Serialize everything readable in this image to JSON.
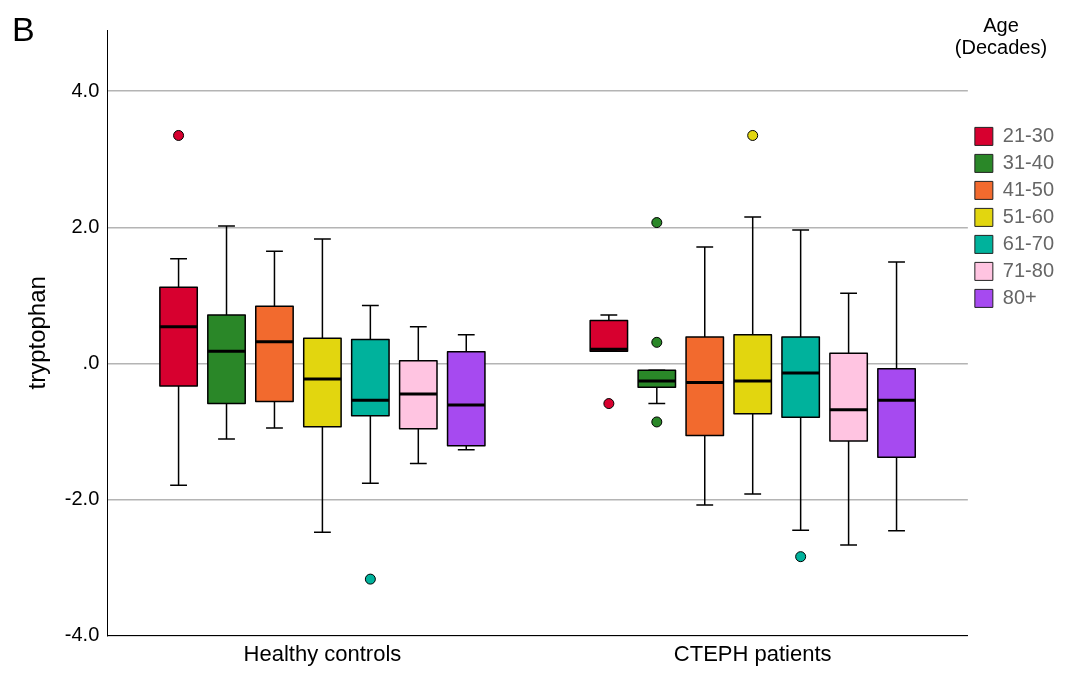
{
  "chart_data": {
    "type": "box",
    "ylabel": "tryptophan",
    "legend_title": "Age (Decades)",
    "annotations": [
      "B"
    ],
    "categories": [
      "Healthy controls",
      "CTEPH patients"
    ],
    "ylim": [
      -4.0,
      4.9
    ],
    "yticks": [
      {
        "value": -4,
        "label": "-4.0"
      },
      {
        "value": -2,
        "label": "-2.0"
      },
      {
        "value": 0,
        "label": ".0"
      },
      {
        "value": 2,
        "label": "2.0"
      },
      {
        "value": 4,
        "label": "4.0"
      }
    ],
    "grid": "y",
    "legend": "top right",
    "series": [
      {
        "name": "21-30",
        "color": "#d7002f",
        "boxes": [
          {
            "low": -1.79,
            "q1": -0.33,
            "median": 0.54,
            "q3": 1.12,
            "high": 1.54,
            "outliers": [
              3.35
            ]
          },
          {
            "low": 0.18,
            "q1": 0.18,
            "median": 0.21,
            "q3": 0.63,
            "high": 0.71,
            "outliers": [
              -0.59
            ]
          }
        ]
      },
      {
        "name": "31-40",
        "color": "#2a8728",
        "boxes": [
          {
            "low": -1.11,
            "q1": -0.59,
            "median": 0.18,
            "q3": 0.71,
            "high": 2.02
          },
          {
            "low": -0.59,
            "q1": -0.35,
            "median": -0.26,
            "q3": -0.1,
            "high": -0.1,
            "outliers": [
              2.07,
              0.31,
              -0.86
            ]
          }
        ]
      },
      {
        "name": "41-50",
        "color": "#f26a2e",
        "boxes": [
          {
            "low": -0.95,
            "q1": -0.56,
            "median": 0.32,
            "q3": 0.84,
            "high": 1.65
          },
          {
            "low": -2.08,
            "q1": -1.06,
            "median": -0.28,
            "q3": 0.39,
            "high": 1.71
          }
        ]
      },
      {
        "name": "51-60",
        "color": "#e2d60f",
        "boxes": [
          {
            "low": -2.48,
            "q1": -0.93,
            "median": -0.23,
            "q3": 0.37,
            "high": 1.83
          },
          {
            "low": -1.92,
            "q1": -0.74,
            "median": -0.26,
            "q3": 0.42,
            "high": 2.15,
            "outliers": [
              3.35
            ]
          }
        ]
      },
      {
        "name": "61-70",
        "color": "#00b29c",
        "boxes": [
          {
            "low": -1.76,
            "q1": -0.77,
            "median": -0.54,
            "q3": 0.35,
            "high": 0.85,
            "outliers": [
              -3.17
            ]
          },
          {
            "low": -2.45,
            "q1": -0.79,
            "median": -0.14,
            "q3": 0.39,
            "high": 1.96,
            "outliers": [
              -2.84
            ]
          }
        ]
      },
      {
        "name": "71-80",
        "color": "#ffc4e1",
        "boxes": [
          {
            "low": -1.47,
            "q1": -0.96,
            "median": -0.45,
            "q3": 0.04,
            "high": 0.54
          },
          {
            "low": -2.67,
            "q1": -1.14,
            "median": -0.68,
            "q3": 0.15,
            "high": 1.03
          }
        ]
      },
      {
        "name": "80+",
        "color": "#a64af0",
        "boxes": [
          {
            "low": -1.27,
            "q1": -1.21,
            "median": -0.61,
            "q3": 0.17,
            "high": 0.42
          },
          {
            "low": -2.46,
            "q1": -1.38,
            "median": -0.54,
            "q3": -0.08,
            "high": 1.49
          }
        ]
      }
    ]
  }
}
